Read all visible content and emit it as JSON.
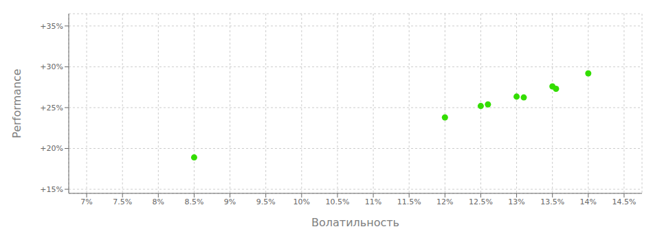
{
  "chart_data": {
    "type": "scatter",
    "xlabel": "Волатильность",
    "ylabel": "Performance",
    "x": [
      8.5,
      12.0,
      12.5,
      12.6,
      13.0,
      13.1,
      13.5,
      13.55,
      14.0
    ],
    "values": [
      18.9,
      23.8,
      25.2,
      25.4,
      26.35,
      26.25,
      27.6,
      27.3,
      29.2
    ],
    "color": "#33dd00",
    "xlim": [
      6.75,
      14.75
    ],
    "ylim": [
      14.5,
      36.5
    ],
    "xticks": [
      {
        "value": 7.0,
        "label": "7%"
      },
      {
        "value": 7.5,
        "label": "7.5%"
      },
      {
        "value": 8.0,
        "label": "8%"
      },
      {
        "value": 8.5,
        "label": "8.5%"
      },
      {
        "value": 9.0,
        "label": "9%"
      },
      {
        "value": 9.5,
        "label": "9.5%"
      },
      {
        "value": 10.0,
        "label": "10%"
      },
      {
        "value": 10.5,
        "label": "10.5%"
      },
      {
        "value": 11.0,
        "label": "11%"
      },
      {
        "value": 11.5,
        "label": "11.5%"
      },
      {
        "value": 12.0,
        "label": "12%"
      },
      {
        "value": 12.5,
        "label": "12.5%"
      },
      {
        "value": 13.0,
        "label": "13%"
      },
      {
        "value": 13.5,
        "label": "13.5%"
      },
      {
        "value": 14.0,
        "label": "14%"
      },
      {
        "value": 14.5,
        "label": "14.5%"
      }
    ],
    "yticks": [
      {
        "value": 15.0,
        "label": "+15%"
      },
      {
        "value": 20.0,
        "label": "+20%"
      },
      {
        "value": 25.0,
        "label": "+25%"
      },
      {
        "value": 30.0,
        "label": "+30%"
      },
      {
        "value": 35.0,
        "label": "+35%"
      }
    ],
    "grid": true
  }
}
